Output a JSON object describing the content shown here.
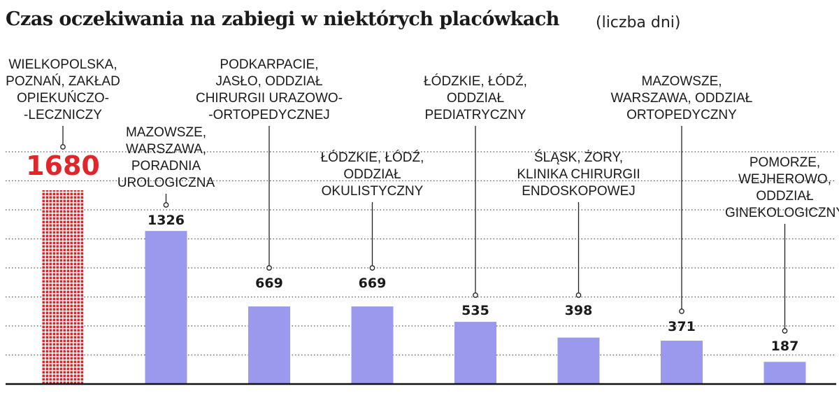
{
  "title": "Czas oczekiwania na zabiegi w niektórych placówkach",
  "unit": "(liczba dni)",
  "colors": {
    "bar": "#9a99ee",
    "highlight": "#e0262b",
    "grid": "#555555",
    "axis": "#111111"
  },
  "chart_data": {
    "type": "bar",
    "title": "Czas oczekiwania na zabiegi w niektórych placówkach",
    "ylabel": "(liczba dni)",
    "xlabel": "",
    "ylim": [
      0,
      1900
    ],
    "grid": true,
    "highlight_index": 0,
    "categories": [
      [
        "WIELKOPOLSKA,",
        "POZNAŃ, ZAKŁAD",
        "OPIEKUŃCZO-",
        "-LECZNICZY"
      ],
      [
        "MAZOWSZE,",
        "WARSZAWA,",
        "PORADNIA",
        "UROLOGICZNA"
      ],
      [
        "PODKARPACIE,",
        "JASŁO, ODDZIAŁ",
        "CHIRURGII URAZOWO-",
        "-ORTOPEDYCZNEJ"
      ],
      [
        "ŁÓDZKIE, ŁÓDŹ,",
        "ODDZIAŁ",
        "OKULISTYCZNY"
      ],
      [
        "ŁÓDZKIE, ŁÓDŹ,",
        "ODDZIAŁ",
        "PEDIATRYCZNY"
      ],
      [
        "ŚLĄSK, ŻORY,",
        "KLINIKA CHIRURGII",
        "ENDOSKOPOWEJ"
      ],
      [
        "MAZOWSZE,",
        "WARSZAWA, ODDZIAŁ",
        "ORTOPEDYCZNY"
      ],
      [
        "POMORZE,",
        "WEJHEROWO,",
        "ODDZIAŁ",
        "GINEKOLOGICZNY"
      ]
    ],
    "values": [
      1680,
      1326,
      669,
      669,
      535,
      398,
      371,
      187
    ],
    "value_labels": [
      "1680",
      "1326",
      "669",
      "669",
      "535",
      "398",
      "371",
      "187"
    ]
  }
}
